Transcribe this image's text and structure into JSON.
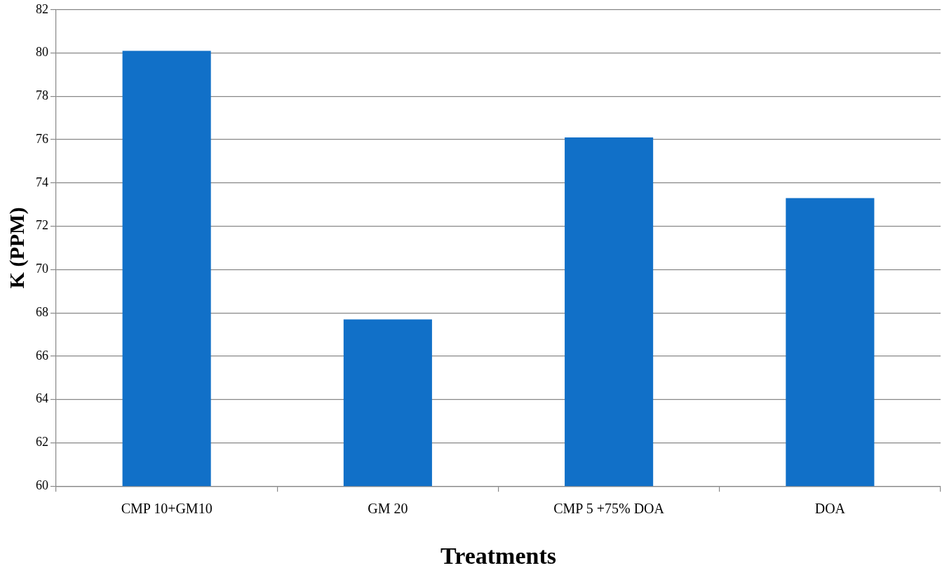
{
  "chart_data": {
    "type": "bar",
    "xlabel": "Treatments",
    "ylabel": "K (PPM)",
    "categories": [
      "CMP 10+GM10",
      "GM 20",
      "CMP 5 +75% DOA",
      "DOA"
    ],
    "values": [
      80.1,
      67.7,
      76.1,
      73.3
    ],
    "color": "#1170c8",
    "ylim": [
      60,
      82
    ],
    "yticks": [
      60,
      62,
      64,
      66,
      68,
      70,
      72,
      74,
      76,
      78,
      80,
      82
    ],
    "grid": "y"
  }
}
